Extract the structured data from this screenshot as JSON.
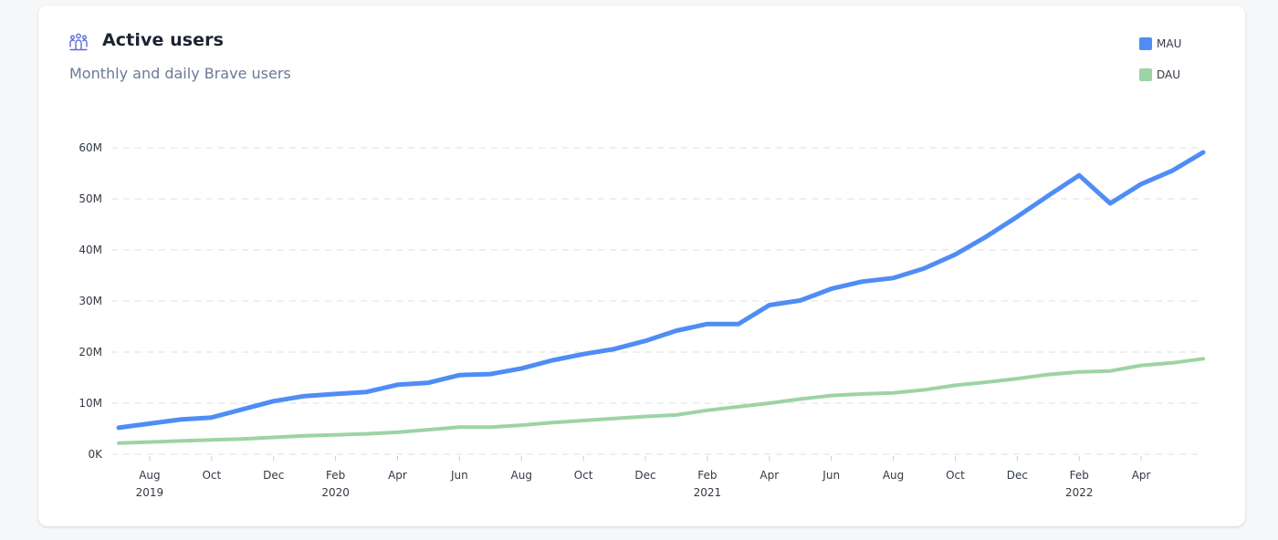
{
  "header": {
    "title": "Active users",
    "subtitle": "Monthly and daily Brave users",
    "icon": "users-group-icon"
  },
  "legend": [
    {
      "label": "MAU",
      "color": "#4f8df5"
    },
    {
      "label": "DAU",
      "color": "#9ed3a3"
    }
  ],
  "colors": {
    "mau": "#4f8df5",
    "dau": "#9ed3a3",
    "grid": "#e3e5e8",
    "icon": "#5b6bdc"
  },
  "chart_data": {
    "type": "line",
    "y_ticks": [
      "0K",
      "10M",
      "20M",
      "30M",
      "40M",
      "50M",
      "60M"
    ],
    "ylim": [
      0,
      60
    ],
    "y_unit": "millions",
    "x_tick_labels": [
      {
        "month": "Aug",
        "year": "2019",
        "date": "2019-08"
      },
      {
        "month": "Oct",
        "year": "",
        "date": "2019-10"
      },
      {
        "month": "Dec",
        "year": "",
        "date": "2019-12"
      },
      {
        "month": "Feb",
        "year": "2020",
        "date": "2020-02"
      },
      {
        "month": "Apr",
        "year": "",
        "date": "2020-04"
      },
      {
        "month": "Jun",
        "year": "",
        "date": "2020-06"
      },
      {
        "month": "Aug",
        "year": "",
        "date": "2020-08"
      },
      {
        "month": "Oct",
        "year": "",
        "date": "2020-10"
      },
      {
        "month": "Dec",
        "year": "",
        "date": "2020-12"
      },
      {
        "month": "Feb",
        "year": "2021",
        "date": "2021-02"
      },
      {
        "month": "Apr",
        "year": "",
        "date": "2021-04"
      },
      {
        "month": "Jun",
        "year": "",
        "date": "2021-06"
      },
      {
        "month": "Aug",
        "year": "",
        "date": "2021-08"
      },
      {
        "month": "Oct",
        "year": "",
        "date": "2021-10"
      },
      {
        "month": "Dec",
        "year": "",
        "date": "2021-12"
      },
      {
        "month": "Feb",
        "year": "2022",
        "date": "2022-02"
      },
      {
        "month": "Apr",
        "year": "",
        "date": "2022-04"
      }
    ],
    "x": [
      "2019-07",
      "2019-08",
      "2019-09",
      "2019-10",
      "2019-11",
      "2019-12",
      "2020-01",
      "2020-02",
      "2020-03",
      "2020-04",
      "2020-05",
      "2020-06",
      "2020-07",
      "2020-08",
      "2020-09",
      "2020-10",
      "2020-11",
      "2020-12",
      "2021-01",
      "2021-02",
      "2021-03",
      "2021-04",
      "2021-05",
      "2021-06",
      "2021-07",
      "2021-08",
      "2021-09",
      "2021-10",
      "2021-11",
      "2021-12",
      "2022-01",
      "2022-02",
      "2022-03",
      "2022-04",
      "2022-05",
      "2022-06"
    ],
    "series": [
      {
        "name": "MAU",
        "values": [
          5.2,
          6.0,
          6.8,
          7.2,
          8.8,
          10.4,
          11.4,
          11.8,
          12.2,
          13.6,
          14.0,
          15.5,
          15.7,
          16.8,
          18.4,
          19.6,
          20.6,
          22.2,
          24.2,
          25.5,
          25.5,
          29.2,
          30.1,
          32.4,
          33.8,
          34.5,
          36.4,
          39.1,
          42.6,
          46.5,
          50.6,
          54.6,
          49.1,
          52.9,
          55.5,
          59.1
        ]
      },
      {
        "name": "DAU",
        "values": [
          2.2,
          2.4,
          2.6,
          2.8,
          3.0,
          3.3,
          3.6,
          3.8,
          4.0,
          4.3,
          4.8,
          5.3,
          5.3,
          5.7,
          6.2,
          6.6,
          7.0,
          7.4,
          7.7,
          8.6,
          9.3,
          10.0,
          10.8,
          11.5,
          11.8,
          12.0,
          12.6,
          13.5,
          14.1,
          14.8,
          15.6,
          16.1,
          16.3,
          17.4,
          17.9,
          18.7
        ]
      }
    ],
    "grid": true,
    "legend_position": "top-right"
  }
}
